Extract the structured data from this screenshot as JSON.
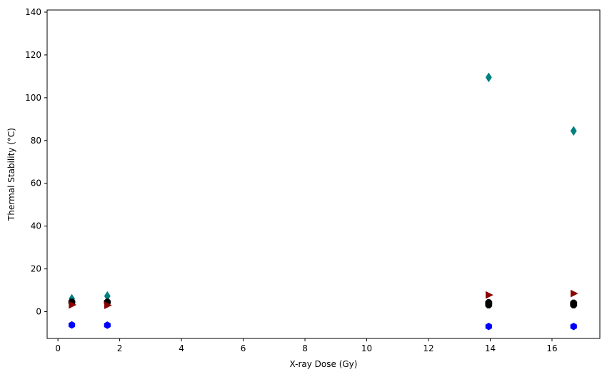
{
  "chart_data": {
    "type": "scatter",
    "title": "",
    "xlabel": "X-ray Dose (Gy)",
    "ylabel": "Thermal Stability (°C)",
    "xlim": [
      -0.35,
      17.55
    ],
    "ylim": [
      -12.5,
      141
    ],
    "x_ticks": [
      0,
      2,
      4,
      6,
      8,
      10,
      12,
      14,
      16
    ],
    "y_ticks": [
      0,
      20,
      40,
      60,
      80,
      100,
      120,
      140
    ],
    "grid": false,
    "legend": "none",
    "series": [
      {
        "marker": "diamond",
        "color": "#008080",
        "points": [
          [
            0.45,
            6.0
          ],
          [
            1.6,
            7.3
          ],
          [
            13.95,
            109.5
          ],
          [
            16.7,
            84.5
          ]
        ]
      },
      {
        "marker": "octagon",
        "color": "#000000",
        "points": [
          [
            0.45,
            4.5
          ],
          [
            1.6,
            4.5
          ],
          [
            13.95,
            4.2
          ],
          [
            13.95,
            3.2
          ],
          [
            16.7,
            4.0
          ],
          [
            16.7,
            3.2
          ]
        ]
      },
      {
        "marker": "triangle-right",
        "color": "#8b0000",
        "points": [
          [
            0.45,
            3.2
          ],
          [
            1.6,
            3.0
          ],
          [
            13.95,
            7.8
          ],
          [
            16.7,
            8.5
          ]
        ]
      },
      {
        "marker": "hexagon",
        "color": "#0000ff",
        "points": [
          [
            0.45,
            -6.2
          ],
          [
            1.6,
            -6.3
          ],
          [
            13.95,
            -6.9
          ],
          [
            16.7,
            -6.9
          ]
        ]
      }
    ]
  }
}
